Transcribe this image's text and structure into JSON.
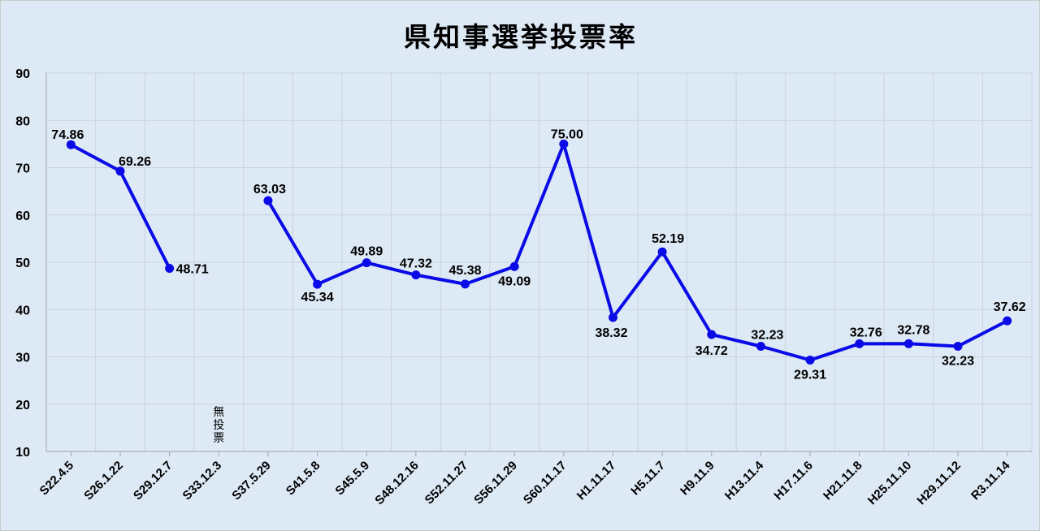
{
  "chart_data": {
    "type": "line",
    "title": "県知事選挙投票率",
    "xlabel": "",
    "ylabel": "",
    "ylim": [
      10,
      90
    ],
    "yticks": [
      10,
      20,
      30,
      40,
      50,
      60,
      70,
      80,
      90
    ],
    "grid": true,
    "legend": "none",
    "line_color": "#0a0ae6",
    "categories": [
      "S22.4.5",
      "S26.1.22",
      "S29.12.7",
      "S33.12.3",
      "S37.5.29",
      "S41.5.8",
      "S45.5.9",
      "S48.12.16",
      "S52.11.27",
      "S56.11.29",
      "S60.11.17",
      "H1.11.17",
      "H5.11.7",
      "H9.11.9",
      "H13.11.4",
      "H17.11.6",
      "H21.11.8",
      "H25.11.10",
      "H29.11.12",
      "R3.11.14"
    ],
    "series": [
      {
        "values": [
          74.86,
          69.26,
          48.71,
          null,
          63.03,
          45.34,
          49.89,
          47.32,
          45.38,
          49.09,
          75.0,
          38.32,
          52.19,
          34.72,
          32.23,
          29.31,
          32.76,
          32.78,
          32.23,
          37.62
        ],
        "labels": [
          "74.86",
          "69.26",
          "48.71",
          "",
          "63.03",
          "45.34",
          "49.89",
          "47.32",
          "45.38",
          "49.09",
          "75.00",
          "38.32",
          "52.19",
          "34.72",
          "32.23",
          "29.31",
          "32.76",
          "32.78",
          "32.23",
          "37.62"
        ]
      }
    ],
    "annotations": [
      {
        "category": "S33.12.3",
        "text": "無投票"
      }
    ]
  }
}
